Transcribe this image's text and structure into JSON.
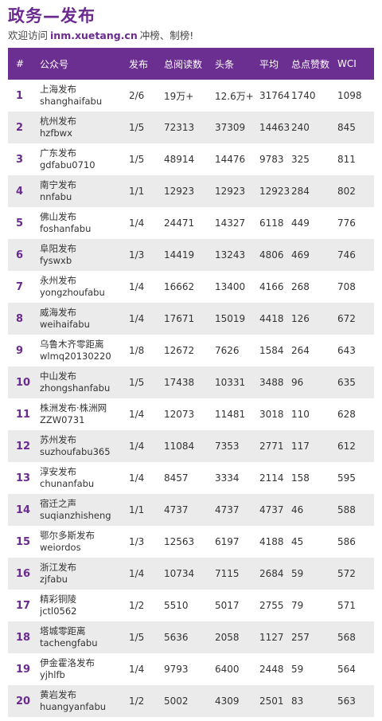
{
  "header": {
    "title": "政务—发布",
    "subtitle_prefix": "欢迎访问",
    "site": "inm.xuetang.cn",
    "subtitle_suffix": "冲榜、制榜!"
  },
  "table": {
    "columns": [
      "#",
      "公众号",
      "发布",
      "总阅读数",
      "头条",
      "平均",
      "总点赞数",
      "WCI"
    ],
    "rows": [
      {
        "rank": "1",
        "name": "上海发布",
        "id": "shanghaifabu",
        "posts": "2/6",
        "total_reads": "19万+",
        "headline": "12.6万+",
        "avg": "31764",
        "likes": "1740",
        "wci": "1098"
      },
      {
        "rank": "2",
        "name": "杭州发布",
        "id": "hzfbwx",
        "posts": "1/5",
        "total_reads": "72313",
        "headline": "37309",
        "avg": "14463",
        "likes": "240",
        "wci": "845"
      },
      {
        "rank": "3",
        "name": "广东发布",
        "id": "gdfabu0710",
        "posts": "1/5",
        "total_reads": "48914",
        "headline": "14476",
        "avg": "9783",
        "likes": "325",
        "wci": "811"
      },
      {
        "rank": "4",
        "name": "南宁发布",
        "id": "nnfabu",
        "posts": "1/1",
        "total_reads": "12923",
        "headline": "12923",
        "avg": "12923",
        "likes": "284",
        "wci": "802"
      },
      {
        "rank": "5",
        "name": "佛山发布",
        "id": "foshanfabu",
        "posts": "1/4",
        "total_reads": "24471",
        "headline": "14327",
        "avg": "6118",
        "likes": "449",
        "wci": "776"
      },
      {
        "rank": "6",
        "name": "阜阳发布",
        "id": "fyswxb",
        "posts": "1/3",
        "total_reads": "14419",
        "headline": "13243",
        "avg": "4806",
        "likes": "469",
        "wci": "746"
      },
      {
        "rank": "7",
        "name": "永州发布",
        "id": "yongzhoufabu",
        "posts": "1/4",
        "total_reads": "16662",
        "headline": "13400",
        "avg": "4166",
        "likes": "268",
        "wci": "708"
      },
      {
        "rank": "8",
        "name": "威海发布",
        "id": "weihaifabu",
        "posts": "1/4",
        "total_reads": "17671",
        "headline": "15019",
        "avg": "4418",
        "likes": "126",
        "wci": "672"
      },
      {
        "rank": "9",
        "name": "乌鲁木齐零距离",
        "id": "wlmq20130220",
        "posts": "1/8",
        "total_reads": "12672",
        "headline": "7626",
        "avg": "1584",
        "likes": "264",
        "wci": "643"
      },
      {
        "rank": "10",
        "name": "中山发布",
        "id": "zhongshanfabu",
        "posts": "1/5",
        "total_reads": "17438",
        "headline": "10331",
        "avg": "3488",
        "likes": "96",
        "wci": "635"
      },
      {
        "rank": "11",
        "name": "株洲发布·株洲网",
        "id": "ZZW0731",
        "posts": "1/4",
        "total_reads": "12073",
        "headline": "11481",
        "avg": "3018",
        "likes": "110",
        "wci": "628"
      },
      {
        "rank": "12",
        "name": "苏州发布",
        "id": "suzhoufabu365",
        "posts": "1/4",
        "total_reads": "11084",
        "headline": "7353",
        "avg": "2771",
        "likes": "117",
        "wci": "612"
      },
      {
        "rank": "13",
        "name": "淳安发布",
        "id": "chunanfabu",
        "posts": "1/4",
        "total_reads": "8457",
        "headline": "3334",
        "avg": "2114",
        "likes": "158",
        "wci": "595"
      },
      {
        "rank": "14",
        "name": "宿迁之声",
        "id": "suqianzhisheng",
        "posts": "1/1",
        "total_reads": "4737",
        "headline": "4737",
        "avg": "4737",
        "likes": "46",
        "wci": "588"
      },
      {
        "rank": "15",
        "name": "鄂尔多斯发布",
        "id": "weiordos",
        "posts": "1/3",
        "total_reads": "12563",
        "headline": "6197",
        "avg": "4188",
        "likes": "45",
        "wci": "586"
      },
      {
        "rank": "16",
        "name": "浙江发布",
        "id": "zjfabu",
        "posts": "1/4",
        "total_reads": "10734",
        "headline": "7115",
        "avg": "2684",
        "likes": "59",
        "wci": "572"
      },
      {
        "rank": "17",
        "name": "精彩铜陵",
        "id": "jctl0562",
        "posts": "1/2",
        "total_reads": "5510",
        "headline": "5017",
        "avg": "2755",
        "likes": "79",
        "wci": "571"
      },
      {
        "rank": "18",
        "name": "塔城零距离",
        "id": "tachengfabu",
        "posts": "1/5",
        "total_reads": "5636",
        "headline": "2058",
        "avg": "1127",
        "likes": "257",
        "wci": "568"
      },
      {
        "rank": "19",
        "name": "伊金霍洛发布",
        "id": "yjhlfb",
        "posts": "1/4",
        "total_reads": "9793",
        "headline": "6400",
        "avg": "2448",
        "likes": "59",
        "wci": "564"
      },
      {
        "rank": "20",
        "name": "黄岩发布",
        "id": "huangyanfabu",
        "posts": "1/2",
        "total_reads": "5002",
        "headline": "4309",
        "avg": "2501",
        "likes": "83",
        "wci": "563"
      }
    ]
  }
}
